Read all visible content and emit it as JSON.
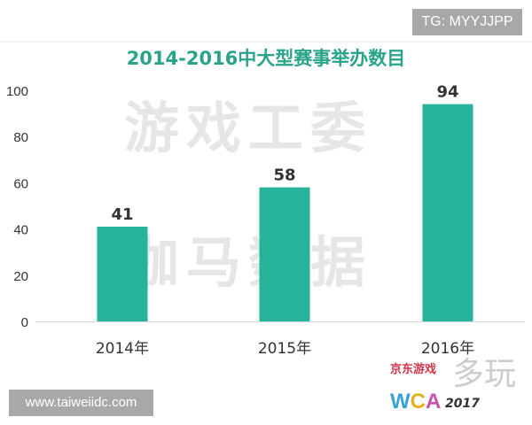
{
  "badges": {
    "tg": "TG: MYYJJPP",
    "site": "www.taiweiidc.com"
  },
  "watermarks": {
    "line1": "游戏工委",
    "line2": "伽马数据",
    "duowan": "多玩",
    "jd": "京东游戏",
    "wca": "WCA",
    "wca_year": "2017"
  },
  "colors": {
    "bar": "#26b39a",
    "title": "#2aa38a"
  },
  "chart_data": {
    "type": "bar",
    "title": "2014-2016中大型赛事举办数目",
    "categories": [
      "2014年",
      "2015年",
      "2016年"
    ],
    "values": [
      41,
      58,
      94
    ],
    "data_labels": [
      "41",
      "58",
      "94"
    ],
    "yticks": [
      "0",
      "20",
      "40",
      "60",
      "80",
      "100"
    ],
    "ylim": [
      0,
      100
    ],
    "xlabel": "",
    "ylabel": "",
    "grid": false
  }
}
